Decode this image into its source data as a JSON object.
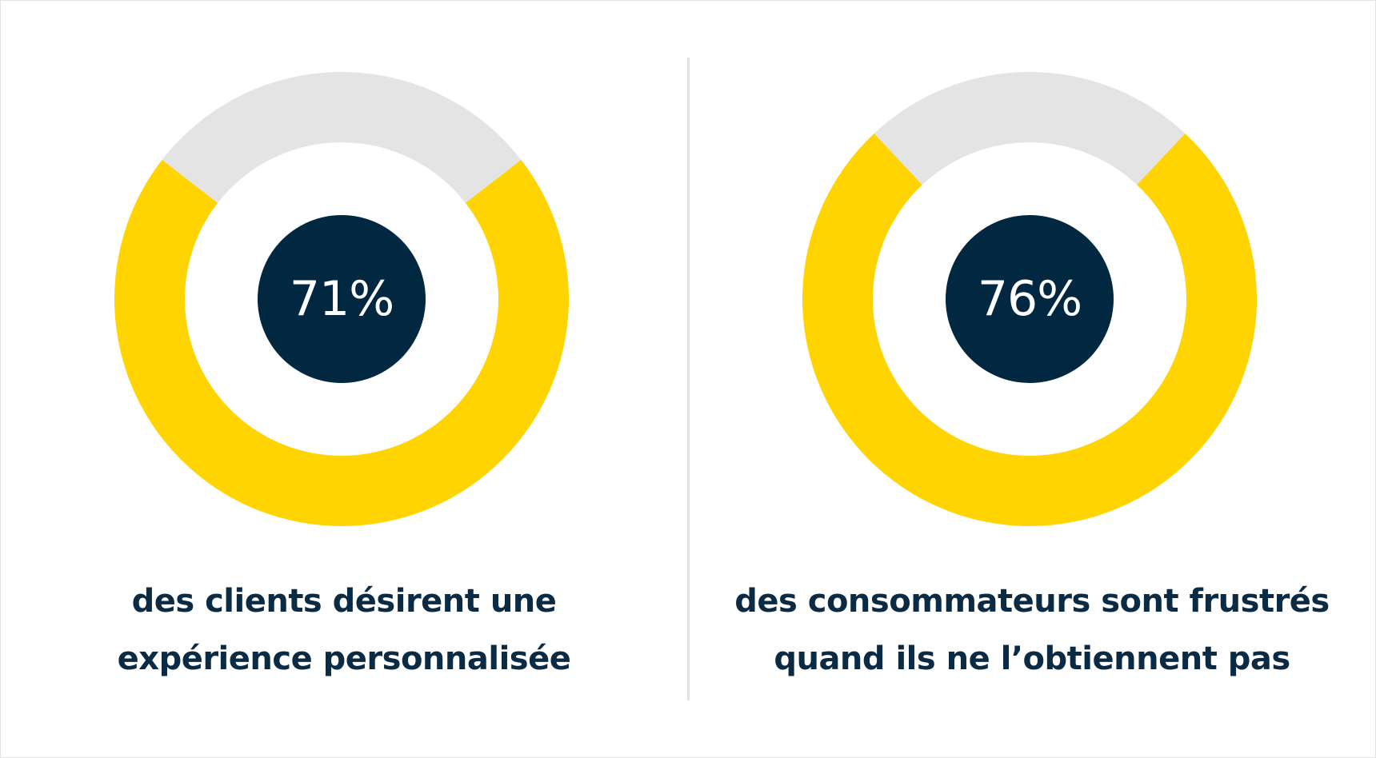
{
  "colors": {
    "value_fill": "#ffd400",
    "remainder_fill": "#e4e4e4",
    "center_fill": "#012840",
    "text": "#0b2a44"
  },
  "chart_data": [
    {
      "type": "pie",
      "values": [
        71,
        29
      ],
      "center_label": "71%",
      "caption_lines": [
        "des clients désirent une",
        "expérience personnalisée"
      ]
    },
    {
      "type": "pie",
      "values": [
        76,
        24
      ],
      "center_label": "76%",
      "caption_lines": [
        "des consommateurs sont frustrés",
        "quand ils ne l’obtiennent pas"
      ]
    }
  ]
}
